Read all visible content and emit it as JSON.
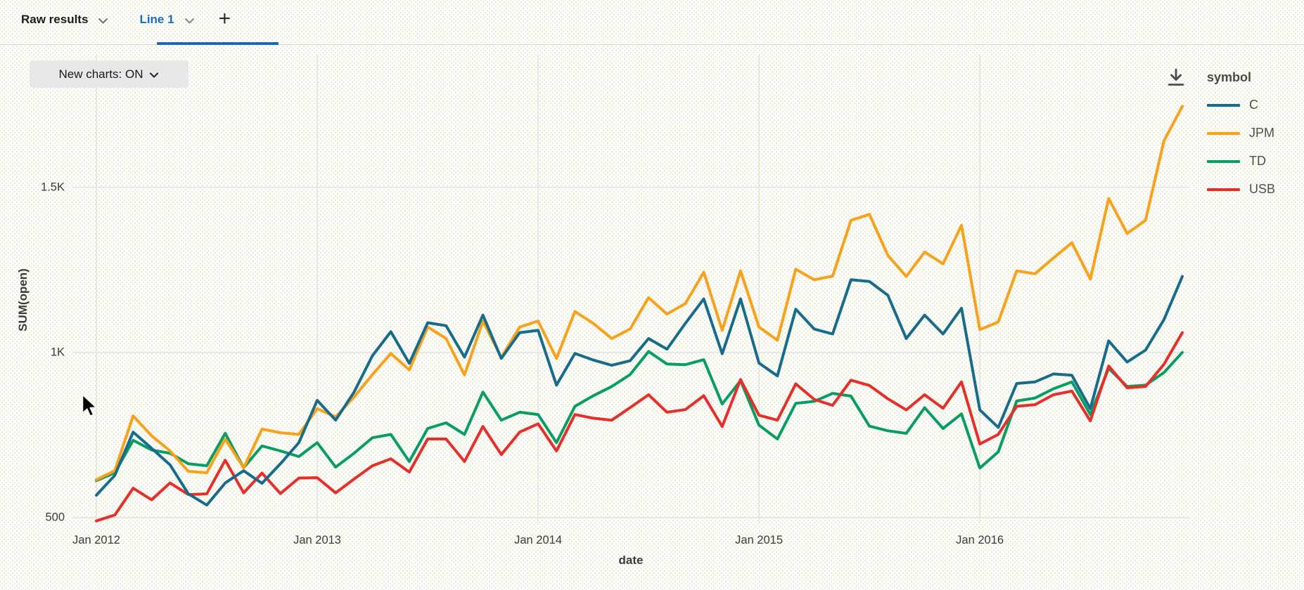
{
  "tab_bar": {
    "tabs": [
      {
        "label": "Raw results",
        "active": false
      },
      {
        "label": "Line 1",
        "active": true
      }
    ],
    "add_tab_label": "+"
  },
  "toolbar": {
    "new_charts_label": "New charts: ON"
  },
  "legend": {
    "title": "symbol"
  },
  "colors": {
    "active_tab_text": "#1a6cbe",
    "active_tab_underline": "#1e69b4",
    "grid": "#e4e4de",
    "axis_text": "#3b3b3b"
  },
  "chart_data": {
    "type": "line",
    "title": "",
    "xlabel": "date",
    "ylabel": "SUM(open)",
    "x_tick_labels": [
      "Jan 2012",
      "Jan 2013",
      "Jan 2014",
      "Jan 2015",
      "Jan 2016"
    ],
    "x_tick_month_index": [
      0,
      12,
      24,
      36,
      48
    ],
    "y_tick_labels": [
      "500",
      "1K",
      "1.5K"
    ],
    "y_tick_values": [
      500,
      1000,
      1500
    ],
    "x_start_month": "2012-01",
    "x_end_month": "2016-12",
    "n_points": 60,
    "ylim": [
      460,
      1810
    ],
    "grid": true,
    "legend_position": "top-right",
    "series": [
      {
        "name": "C",
        "color": "#176c8c",
        "values": [
          568,
          628,
          759,
          710,
          660,
          572,
          538,
          605,
          642,
          604,
          663,
          727,
          855,
          795,
          880,
          990,
          1063,
          967,
          1090,
          1081,
          986,
          1113,
          982,
          1060,
          1067,
          901,
          997,
          977,
          961,
          975,
          1042,
          1010,
          1088,
          1162,
          996,
          1162,
          968,
          929,
          1131,
          1071,
          1056,
          1220,
          1215,
          1173,
          1042,
          1113,
          1056,
          1134,
          826,
          773,
          906,
          911,
          935,
          931,
          830,
          1035,
          971,
          1007,
          1099,
          1230
        ]
      },
      {
        "name": "JPM",
        "color": "#f9a11b",
        "values": [
          615,
          642,
          808,
          748,
          702,
          640,
          636,
          738,
          651,
          768,
          757,
          752,
          830,
          805,
          865,
          933,
          997,
          947,
          1077,
          1042,
          932,
          1095,
          985,
          1077,
          1095,
          982,
          1124,
          1088,
          1042,
          1071,
          1166,
          1116,
          1148,
          1243,
          1067,
          1247,
          1077,
          1037,
          1252,
          1220,
          1231,
          1400,
          1418,
          1294,
          1230,
          1304,
          1268,
          1385,
          1069,
          1092,
          1247,
          1238,
          1286,
          1332,
          1222,
          1466,
          1360,
          1400,
          1640,
          1745
        ]
      },
      {
        "name": "TD",
        "color": "#089e63",
        "values": [
          612,
          636,
          734,
          705,
          695,
          663,
          657,
          755,
          651,
          717,
          702,
          685,
          727,
          653,
          695,
          742,
          752,
          670,
          770,
          787,
          752,
          880,
          795,
          819,
          812,
          727,
          837,
          869,
          897,
          933,
          1003,
          965,
          963,
          978,
          844,
          915,
          780,
          738,
          846,
          852,
          876,
          868,
          777,
          763,
          755,
          833,
          770,
          814,
          650,
          699,
          853,
          862,
          890,
          911,
          812,
          952,
          897,
          901,
          939,
          1000
        ]
      },
      {
        "name": "USB",
        "color": "#e72e28",
        "values": [
          490,
          508,
          589,
          554,
          605,
          570,
          572,
          674,
          575,
          635,
          573,
          620,
          621,
          575,
          617,
          657,
          678,
          638,
          738,
          738,
          670,
          776,
          691,
          759,
          784,
          702,
          812,
          801,
          795,
          833,
          872,
          819,
          827,
          869,
          776,
          918,
          810,
          795,
          905,
          858,
          840,
          916,
          900,
          860,
          826,
          872,
          831,
          911,
          723,
          752,
          837,
          842,
          872,
          883,
          793,
          959,
          893,
          897,
          964,
          1060
        ]
      }
    ]
  }
}
